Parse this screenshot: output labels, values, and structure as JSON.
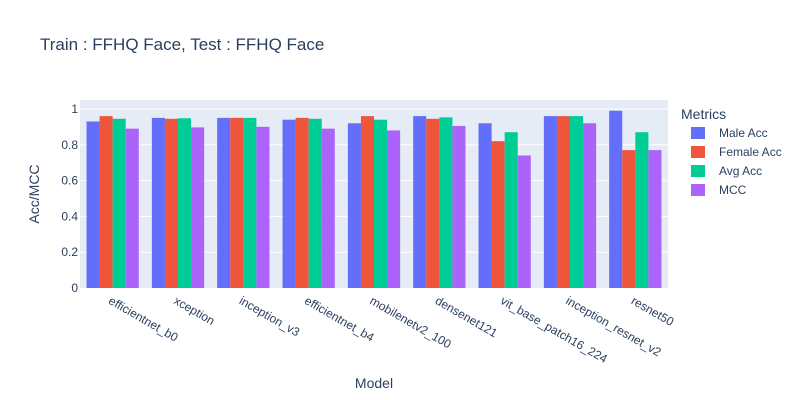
{
  "chart_data": {
    "type": "bar",
    "title": "Train : FFHQ Face, Test : FFHQ Face",
    "xlabel": "Model",
    "ylabel": "Acc/MCC",
    "ylim": [
      0,
      1.05
    ],
    "yticks": [
      0,
      0.2,
      0.4,
      0.6,
      0.8,
      1
    ],
    "grid": true,
    "legend_title": "Metrics",
    "legend_position": "right",
    "categories": [
      "efficientnet_b0",
      "xception",
      "inception_v3",
      "efficientnet_b4",
      "mobilenetv2_100",
      "densenet121",
      "vit_base_patch16_224",
      "inception_resnet_v2",
      "resnet50"
    ],
    "series": [
      {
        "name": "Male Acc",
        "color": "#636efa",
        "values": [
          0.93,
          0.95,
          0.95,
          0.94,
          0.92,
          0.96,
          0.92,
          0.96,
          0.99
        ]
      },
      {
        "name": "Female Acc",
        "color": "#ef553b",
        "values": [
          0.96,
          0.945,
          0.95,
          0.95,
          0.96,
          0.945,
          0.82,
          0.96,
          0.77
        ]
      },
      {
        "name": "Avg Acc",
        "color": "#00cc96",
        "values": [
          0.945,
          0.948,
          0.95,
          0.945,
          0.94,
          0.953,
          0.87,
          0.96,
          0.87
        ]
      },
      {
        "name": "MCC",
        "color": "#ab63fa",
        "values": [
          0.89,
          0.897,
          0.9,
          0.89,
          0.88,
          0.905,
          0.74,
          0.92,
          0.77
        ]
      }
    ]
  }
}
